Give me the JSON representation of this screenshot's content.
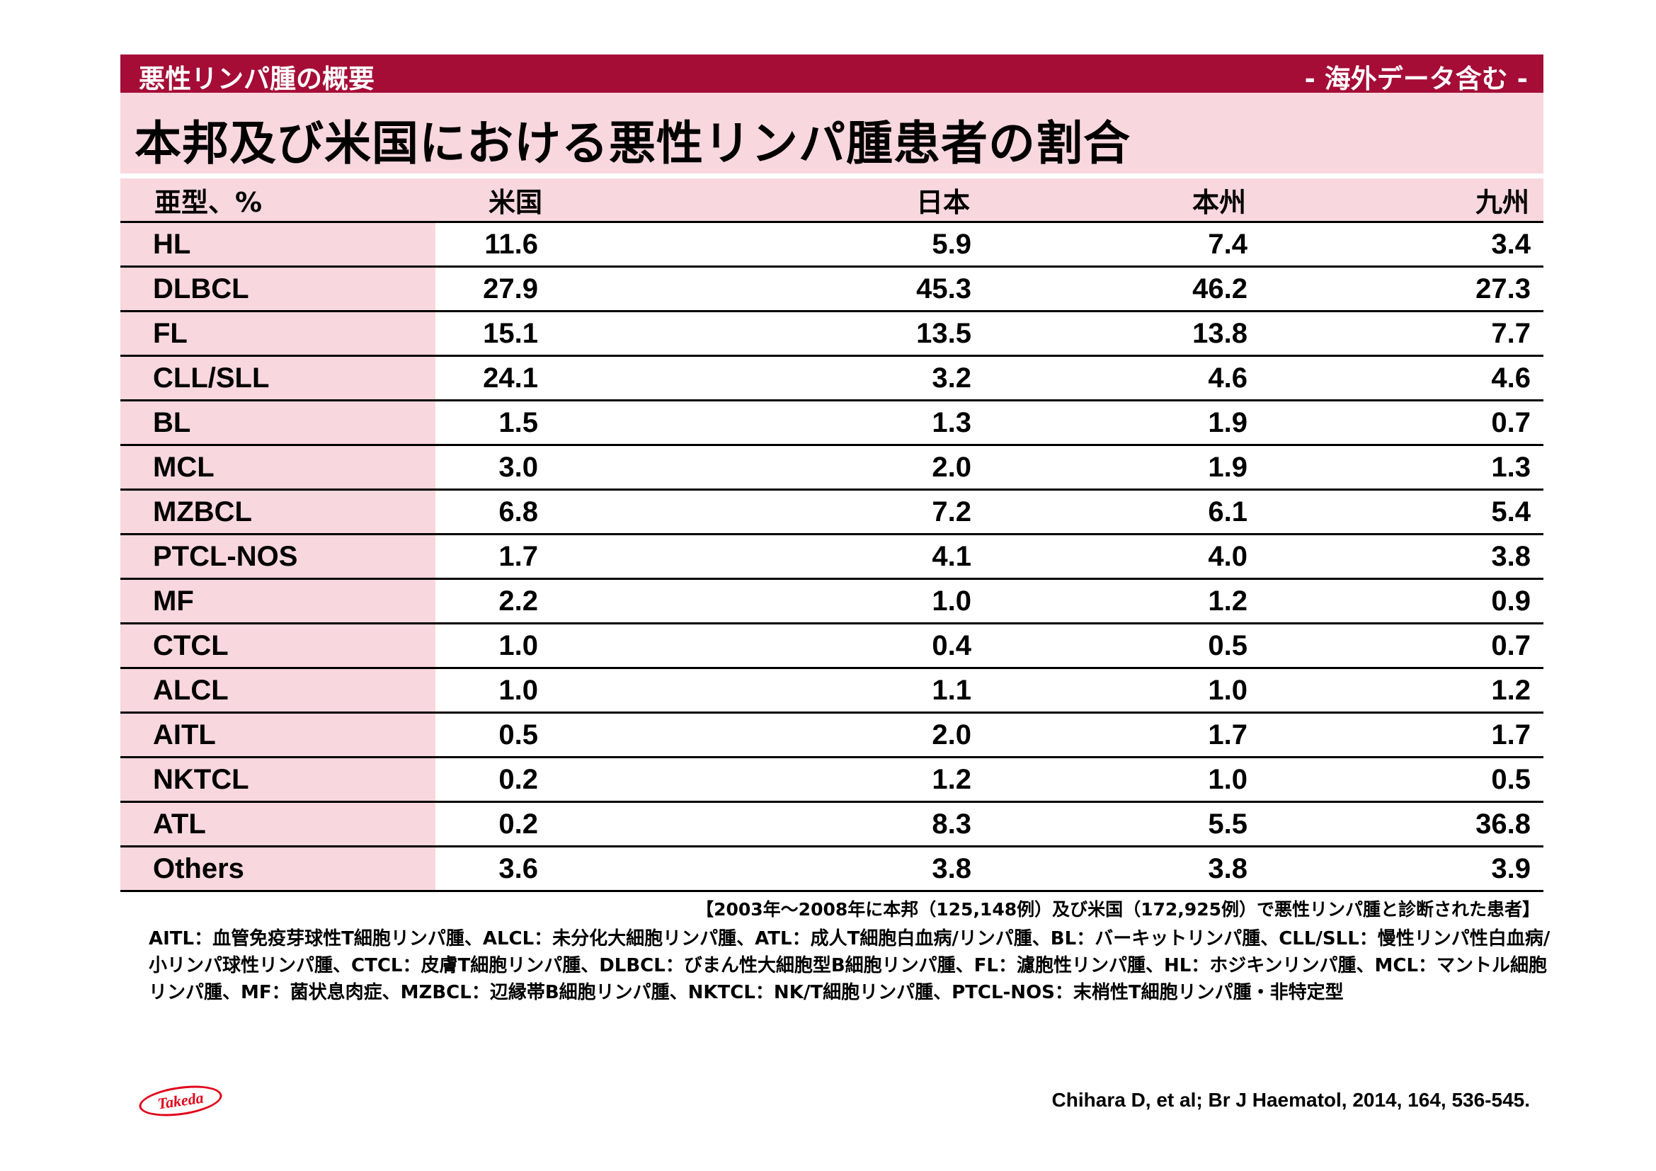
{
  "header": {
    "section": "悪性リンパ腫の概要",
    "note": "- 海外データ含む -",
    "title": "本邦及び米国における悪性リンパ腫患者の割合"
  },
  "table": {
    "headers": [
      "亜型、%",
      "米国",
      "日本",
      "本州",
      "九州"
    ],
    "rows": [
      [
        "HL",
        "11.6",
        "5.9",
        "7.4",
        "3.4"
      ],
      [
        "DLBCL",
        "27.9",
        "45.3",
        "46.2",
        "27.3"
      ],
      [
        "FL",
        "15.1",
        "13.5",
        "13.8",
        "7.7"
      ],
      [
        "CLL/SLL",
        "24.1",
        "3.2",
        "4.6",
        "4.6"
      ],
      [
        "BL",
        "1.5",
        "1.3",
        "1.9",
        "0.7"
      ],
      [
        "MCL",
        "3.0",
        "2.0",
        "1.9",
        "1.3"
      ],
      [
        "MZBCL",
        "6.8",
        "7.2",
        "6.1",
        "5.4"
      ],
      [
        "PTCL-NOS",
        "1.7",
        "4.1",
        "4.0",
        "3.8"
      ],
      [
        "MF",
        "2.2",
        "1.0",
        "1.2",
        "0.9"
      ],
      [
        "CTCL",
        "1.0",
        "0.4",
        "0.5",
        "0.7"
      ],
      [
        "ALCL",
        "1.0",
        "1.1",
        "1.0",
        "1.2"
      ],
      [
        "AITL",
        "0.5",
        "2.0",
        "1.7",
        "1.7"
      ],
      [
        "NKTCL",
        "0.2",
        "1.2",
        "1.0",
        "0.5"
      ],
      [
        "ATL",
        "0.2",
        "8.3",
        "5.5",
        "36.8"
      ],
      [
        "Others",
        "3.6",
        "3.8",
        "3.8",
        "3.9"
      ]
    ]
  },
  "caption": "【2003年～2008年に本邦（125,148例）及び米国（172,925例）で悪性リンパ腫と診断された患者】",
  "abbreviations": "AITL：血管免疫芽球性T細胞リンパ腫、ALCL：未分化大細胞リンパ腫、ATL：成人T細胞白血病/リンパ腫、BL：バーキットリンパ腫、CLL/SLL：慢性リンパ性白血病/小リンパ球性リンパ腫、CTCL：皮膚T細胞リンパ腫、DLBCL：びまん性大細胞型B細胞リンパ腫、FL：濾胞性リンパ腫、HL：ホジキンリンパ腫、MCL：マントル細胞リンパ腫、MF：菌状息肉症、MZBCL：辺縁帯B細胞リンパ腫、NKTCL：NK/T細胞リンパ腫、PTCL-NOS：末梢性T細胞リンパ腫・非特定型",
  "logo": "Takeda",
  "citation": "Chihara D, et al; Br J Haematol, 2014, 164, 536-545.",
  "colors": {
    "accent": "#a50c36",
    "header_pink": "#f8d7de",
    "logo_red": "#e1001a"
  }
}
